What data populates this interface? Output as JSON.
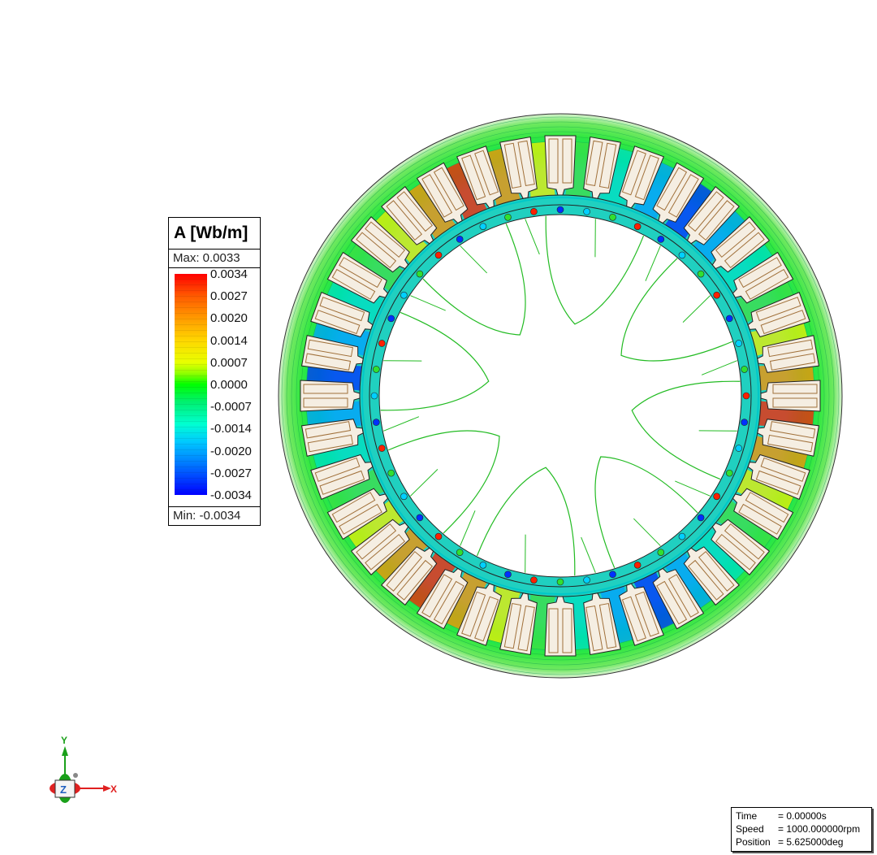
{
  "legend": {
    "title": "A [Wb/m]",
    "max_label": "Max: 0.0033",
    "min_label": "Min: -0.0034",
    "ticks": [
      "0.0034",
      "0.0027",
      "0.0020",
      "0.0014",
      "0.0007",
      "0.0000",
      "-0.0007",
      "-0.0014",
      "-0.0020",
      "-0.0027",
      "-0.0034"
    ]
  },
  "motor": {
    "stator_slots": 36,
    "rotor_bars": 44
  },
  "axes": {
    "y_label": "Y",
    "x_label": "X",
    "z_label": "Z"
  },
  "status": {
    "time_label": "Time",
    "time_value": "= 0.00000s",
    "speed_label": "Speed",
    "speed_value": "= 1000.000000rpm",
    "position_label": "Position",
    "position_value": "= 5.625000deg"
  },
  "colors": {
    "contour_green": "#22bb22",
    "slot_fill": "#f5eee2",
    "slot_stroke": "#a0703a"
  }
}
